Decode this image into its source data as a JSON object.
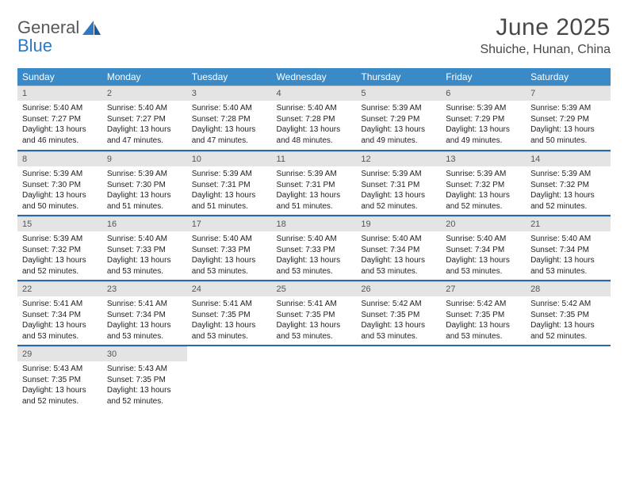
{
  "brand": {
    "general": "General",
    "blue": "Blue"
  },
  "title": "June 2025",
  "location": "Shuiche, Hunan, China",
  "colors": {
    "header_bg": "#3a8ac7",
    "header_text": "#ffffff",
    "daynum_bg": "#e4e4e4",
    "daynum_text": "#555555",
    "week_sep": "#2d6aa3",
    "body_text": "#222222",
    "logo_gray": "#585858",
    "logo_blue": "#2f78c3"
  },
  "weekdays": [
    "Sunday",
    "Monday",
    "Tuesday",
    "Wednesday",
    "Thursday",
    "Friday",
    "Saturday"
  ],
  "days": {
    "1": {
      "sunrise": "5:40 AM",
      "sunset": "7:27 PM",
      "daylight": "13 hours and 46 minutes."
    },
    "2": {
      "sunrise": "5:40 AM",
      "sunset": "7:27 PM",
      "daylight": "13 hours and 47 minutes."
    },
    "3": {
      "sunrise": "5:40 AM",
      "sunset": "7:28 PM",
      "daylight": "13 hours and 47 minutes."
    },
    "4": {
      "sunrise": "5:40 AM",
      "sunset": "7:28 PM",
      "daylight": "13 hours and 48 minutes."
    },
    "5": {
      "sunrise": "5:39 AM",
      "sunset": "7:29 PM",
      "daylight": "13 hours and 49 minutes."
    },
    "6": {
      "sunrise": "5:39 AM",
      "sunset": "7:29 PM",
      "daylight": "13 hours and 49 minutes."
    },
    "7": {
      "sunrise": "5:39 AM",
      "sunset": "7:29 PM",
      "daylight": "13 hours and 50 minutes."
    },
    "8": {
      "sunrise": "5:39 AM",
      "sunset": "7:30 PM",
      "daylight": "13 hours and 50 minutes."
    },
    "9": {
      "sunrise": "5:39 AM",
      "sunset": "7:30 PM",
      "daylight": "13 hours and 51 minutes."
    },
    "10": {
      "sunrise": "5:39 AM",
      "sunset": "7:31 PM",
      "daylight": "13 hours and 51 minutes."
    },
    "11": {
      "sunrise": "5:39 AM",
      "sunset": "7:31 PM",
      "daylight": "13 hours and 51 minutes."
    },
    "12": {
      "sunrise": "5:39 AM",
      "sunset": "7:31 PM",
      "daylight": "13 hours and 52 minutes."
    },
    "13": {
      "sunrise": "5:39 AM",
      "sunset": "7:32 PM",
      "daylight": "13 hours and 52 minutes."
    },
    "14": {
      "sunrise": "5:39 AM",
      "sunset": "7:32 PM",
      "daylight": "13 hours and 52 minutes."
    },
    "15": {
      "sunrise": "5:39 AM",
      "sunset": "7:32 PM",
      "daylight": "13 hours and 52 minutes."
    },
    "16": {
      "sunrise": "5:40 AM",
      "sunset": "7:33 PM",
      "daylight": "13 hours and 53 minutes."
    },
    "17": {
      "sunrise": "5:40 AM",
      "sunset": "7:33 PM",
      "daylight": "13 hours and 53 minutes."
    },
    "18": {
      "sunrise": "5:40 AM",
      "sunset": "7:33 PM",
      "daylight": "13 hours and 53 minutes."
    },
    "19": {
      "sunrise": "5:40 AM",
      "sunset": "7:34 PM",
      "daylight": "13 hours and 53 minutes."
    },
    "20": {
      "sunrise": "5:40 AM",
      "sunset": "7:34 PM",
      "daylight": "13 hours and 53 minutes."
    },
    "21": {
      "sunrise": "5:40 AM",
      "sunset": "7:34 PM",
      "daylight": "13 hours and 53 minutes."
    },
    "22": {
      "sunrise": "5:41 AM",
      "sunset": "7:34 PM",
      "daylight": "13 hours and 53 minutes."
    },
    "23": {
      "sunrise": "5:41 AM",
      "sunset": "7:34 PM",
      "daylight": "13 hours and 53 minutes."
    },
    "24": {
      "sunrise": "5:41 AM",
      "sunset": "7:35 PM",
      "daylight": "13 hours and 53 minutes."
    },
    "25": {
      "sunrise": "5:41 AM",
      "sunset": "7:35 PM",
      "daylight": "13 hours and 53 minutes."
    },
    "26": {
      "sunrise": "5:42 AM",
      "sunset": "7:35 PM",
      "daylight": "13 hours and 53 minutes."
    },
    "27": {
      "sunrise": "5:42 AM",
      "sunset": "7:35 PM",
      "daylight": "13 hours and 53 minutes."
    },
    "28": {
      "sunrise": "5:42 AM",
      "sunset": "7:35 PM",
      "daylight": "13 hours and 52 minutes."
    },
    "29": {
      "sunrise": "5:43 AM",
      "sunset": "7:35 PM",
      "daylight": "13 hours and 52 minutes."
    },
    "30": {
      "sunrise": "5:43 AM",
      "sunset": "7:35 PM",
      "daylight": "13 hours and 52 minutes."
    }
  },
  "labels": {
    "sunrise": "Sunrise:",
    "sunset": "Sunset:",
    "daylight": "Daylight:"
  },
  "layout": {
    "first_weekday_index": 0,
    "days_in_month": 30,
    "columns": 7,
    "rows": 5
  }
}
